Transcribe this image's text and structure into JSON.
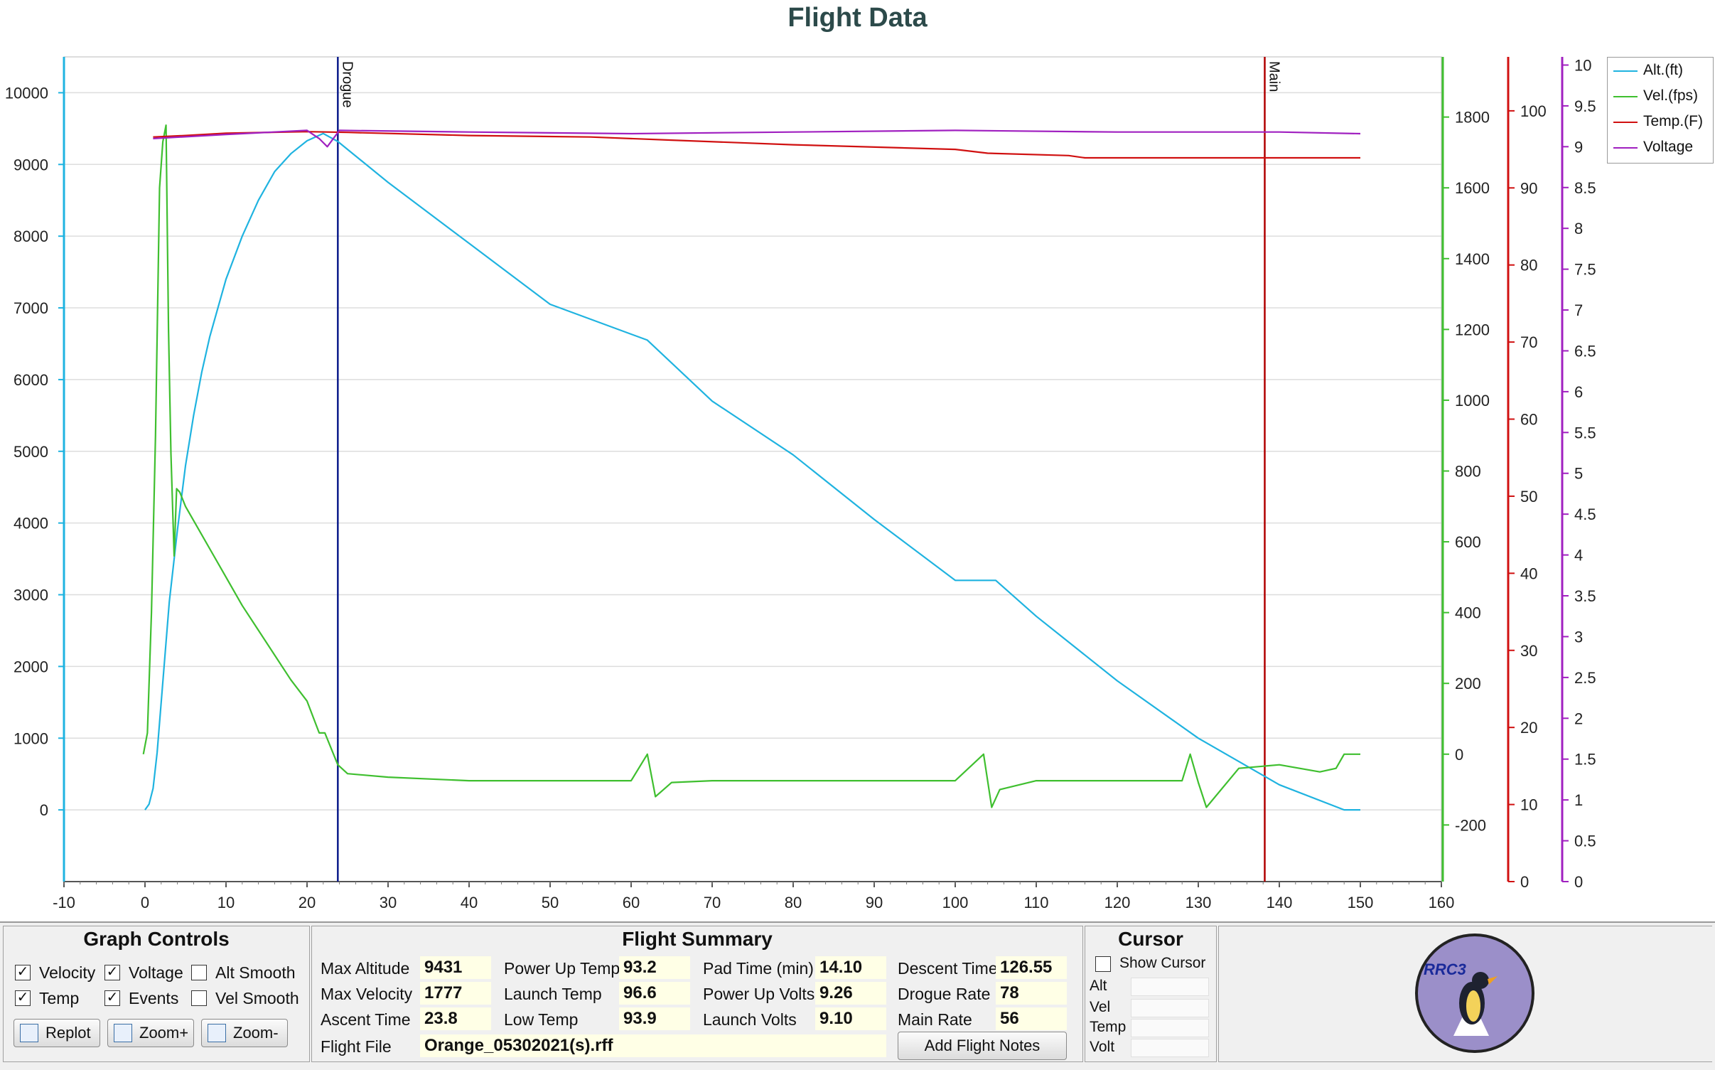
{
  "chart_data": {
    "type": "line",
    "title": "Flight Data",
    "xlim": [
      -10,
      160
    ],
    "x_ticks": [
      "-10",
      "0",
      "10",
      "20",
      "30",
      "40",
      "50",
      "60",
      "70",
      "80",
      "90",
      "100",
      "110",
      "120",
      "130",
      "140",
      "150",
      "160"
    ],
    "axes": {
      "altitude": {
        "range": [
          -1000,
          10500
        ],
        "ticks": [
          "0",
          "1000",
          "2000",
          "3000",
          "4000",
          "5000",
          "6000",
          "7000",
          "8000",
          "9000",
          "10000"
        ],
        "color": "#1fb3e0"
      },
      "velocity": {
        "range": [
          -360,
          1970
        ],
        "ticks": [
          "-200",
          "0",
          "200",
          "400",
          "600",
          "800",
          "1000",
          "1200",
          "1400",
          "1600",
          "1800"
        ],
        "color": "#3fbf2f"
      },
      "temperature": {
        "range": [
          0,
          107
        ],
        "ticks": [
          "0",
          "10",
          "20",
          "30",
          "40",
          "50",
          "60",
          "70",
          "80",
          "90",
          "100"
        ],
        "color": "#d01010"
      },
      "voltage": {
        "range": [
          0,
          10.1
        ],
        "ticks": [
          "0",
          "0.5",
          "1",
          "1.5",
          "2",
          "2.5",
          "3",
          "3.5",
          "4",
          "4.5",
          "5",
          "5.5",
          "6",
          "6.5",
          "7",
          "7.5",
          "8",
          "8.5",
          "9",
          "9.5",
          "10"
        ],
        "color": "#a020c0"
      }
    },
    "events": [
      {
        "label": "Drogue",
        "x": 23.8,
        "color": "#0a1a8a"
      },
      {
        "label": "Main",
        "x": 138.2,
        "color": "#b00000"
      }
    ],
    "series": [
      {
        "name": "Alt.(ft)",
        "axis": "altitude",
        "color": "#1fb3e0",
        "x": [
          0,
          0.5,
          1,
          1.5,
          2,
          2.5,
          3,
          4,
          5,
          6,
          7,
          8,
          10,
          12,
          14,
          16,
          18,
          20,
          22,
          23.8,
          30,
          40,
          50,
          62,
          70,
          80,
          90,
          100,
          105,
          110,
          120,
          130,
          140,
          148,
          150
        ],
        "y": [
          0,
          80,
          300,
          800,
          1500,
          2200,
          2900,
          3900,
          4800,
          5500,
          6100,
          6600,
          7400,
          8000,
          8500,
          8900,
          9150,
          9330,
          9431,
          9320,
          8750,
          7900,
          7050,
          6550,
          5700,
          4950,
          4050,
          3200,
          3200,
          2700,
          1800,
          1000,
          350,
          0,
          0
        ]
      },
      {
        "name": "Vel.(fps)",
        "axis": "velocity",
        "color": "#3fbf2f",
        "x": [
          -0.2,
          0.3,
          0.8,
          1.3,
          1.8,
          2.2,
          2.6,
          2.9,
          3.2,
          3.6,
          3.9,
          4.3,
          5,
          6,
          8,
          10,
          12,
          14,
          16,
          18,
          20,
          21.5,
          22.2,
          23.8,
          25,
          30,
          40,
          50,
          60,
          62,
          63,
          64,
          65,
          70,
          80,
          90,
          100,
          103.5,
          104.5,
          105.5,
          110,
          120,
          128,
          129,
          130,
          131,
          135,
          140,
          145,
          147,
          148,
          150
        ],
        "y": [
          0,
          60,
          400,
          900,
          1600,
          1730,
          1777,
          1200,
          850,
          560,
          750,
          740,
          700,
          660,
          580,
          500,
          420,
          350,
          280,
          210,
          150,
          60,
          60,
          -30,
          -55,
          -65,
          -75,
          -75,
          -75,
          0,
          -120,
          -100,
          -80,
          -75,
          -75,
          -75,
          -75,
          0,
          -150,
          -100,
          -75,
          -75,
          -75,
          0,
          -80,
          -150,
          -40,
          -30,
          -50,
          -40,
          0,
          0
        ]
      },
      {
        "name": "Temp.(F)",
        "axis": "temperature",
        "color": "#d01010",
        "x": [
          1,
          5,
          10,
          20,
          25,
          40,
          55,
          65,
          80,
          100,
          104,
          114,
          116,
          125,
          150
        ],
        "y": [
          96.6,
          96.8,
          97.1,
          97.3,
          97.2,
          96.8,
          96.6,
          96.2,
          95.6,
          95.0,
          94.5,
          94.2,
          93.9,
          93.9,
          93.9
        ]
      },
      {
        "name": "Voltage",
        "axis": "voltage",
        "color": "#a020c0",
        "x": [
          1,
          10,
          20,
          21.5,
          22.5,
          24,
          40,
          60,
          80,
          100,
          120,
          140,
          150
        ],
        "y": [
          9.1,
          9.15,
          9.2,
          9.1,
          9.0,
          9.2,
          9.18,
          9.16,
          9.18,
          9.2,
          9.18,
          9.18,
          9.16
        ]
      }
    ]
  },
  "graph_controls": {
    "title": "Graph Controls",
    "checkboxes": [
      {
        "label": "Velocity",
        "checked": true
      },
      {
        "label": "Voltage",
        "checked": true
      },
      {
        "label": "Alt Smooth",
        "checked": false
      },
      {
        "label": "Temp",
        "checked": true
      },
      {
        "label": "Events",
        "checked": true
      },
      {
        "label": "Vel Smooth",
        "checked": false
      }
    ],
    "buttons": {
      "replot": "Replot",
      "zoom_in": "Zoom+",
      "zoom_out": "Zoom-"
    }
  },
  "summary": {
    "title": "Flight Summary",
    "fields": [
      {
        "label": "Max Altitude",
        "value": "9431"
      },
      {
        "label": "Max Velocity",
        "value": "1777"
      },
      {
        "label": "Ascent Time",
        "value": "23.8"
      },
      {
        "label": "Power Up Temp",
        "value": "93.2"
      },
      {
        "label": "Launch Temp",
        "value": "96.6"
      },
      {
        "label": "Low Temp",
        "value": "93.9"
      },
      {
        "label": "Pad Time (min)",
        "value": "14.10"
      },
      {
        "label": "Power Up Volts",
        "value": "9.26"
      },
      {
        "label": "Launch Volts",
        "value": "9.10"
      },
      {
        "label": "Descent Time",
        "value": "126.55"
      },
      {
        "label": "Drogue Rate",
        "value": "78"
      },
      {
        "label": "Main Rate",
        "value": "56"
      }
    ],
    "flight_file_label": "Flight File",
    "flight_file": "Orange_05302021(s).rff",
    "add_notes": "Add Flight Notes"
  },
  "cursor": {
    "title": "Cursor",
    "show_cursor_label": "Show Cursor",
    "show_cursor": false,
    "fields": [
      "Alt",
      "Vel",
      "Temp",
      "Volt"
    ]
  },
  "logo": {
    "text": "RRC3"
  }
}
